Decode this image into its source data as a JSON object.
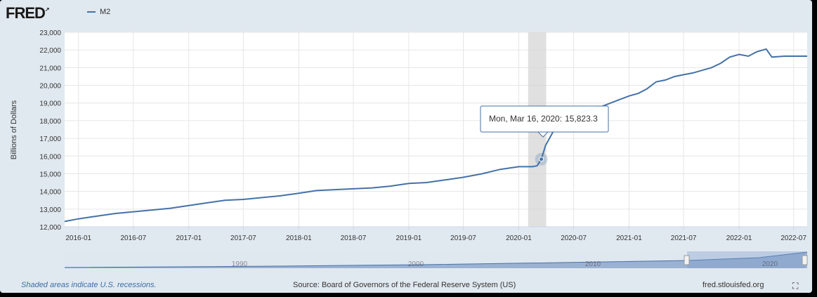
{
  "header": {
    "logo_text": "FRED",
    "legend_label": "M2"
  },
  "tooltip": {
    "date_label": "Mon, Mar 16, 2020:",
    "value_label": "15,823.3"
  },
  "footer": {
    "recession_note": "Shaded areas indicate U.S. recessions.",
    "source": "Source: Board of Governors of the Federal Reserve System (US)",
    "site": "fred.stlouisfed.org"
  },
  "navigator": {
    "labels": [
      "1990",
      "2000",
      "2010",
      "2020"
    ]
  },
  "colors": {
    "series": "#4572a7",
    "recession": "#d3d3d3",
    "background": "#e1e9f0"
  },
  "chart_data": {
    "type": "line",
    "ylabel": "Billions of Dollars",
    "ylim": [
      12000,
      23000
    ],
    "xlim": [
      "2015-11-16",
      "2022-08-15"
    ],
    "y_ticks": [
      "12,000",
      "13,000",
      "14,000",
      "15,000",
      "16,000",
      "17,000",
      "18,000",
      "19,000",
      "20,000",
      "21,000",
      "22,000",
      "23,000"
    ],
    "x_ticks": [
      "2016-01",
      "2016-07",
      "2017-01",
      "2017-07",
      "2018-01",
      "2018-07",
      "2019-01",
      "2019-07",
      "2020-01",
      "2020-07",
      "2021-01",
      "2021-07",
      "2022-01",
      "2022-07"
    ],
    "recession": {
      "start": "2020-02-01",
      "end": "2020-04-01"
    },
    "grid": true,
    "series": [
      {
        "name": "M2",
        "points": [
          [
            "2015-11-16",
            12300
          ],
          [
            "2016-01-01",
            12450
          ],
          [
            "2016-03-01",
            12600
          ],
          [
            "2016-05-01",
            12750
          ],
          [
            "2016-07-01",
            12850
          ],
          [
            "2016-09-01",
            12950
          ],
          [
            "2016-11-01",
            13050
          ],
          [
            "2017-01-01",
            13200
          ],
          [
            "2017-03-01",
            13350
          ],
          [
            "2017-05-01",
            13500
          ],
          [
            "2017-07-01",
            13550
          ],
          [
            "2017-09-01",
            13650
          ],
          [
            "2017-11-01",
            13750
          ],
          [
            "2018-01-01",
            13900
          ],
          [
            "2018-03-01",
            14050
          ],
          [
            "2018-05-01",
            14100
          ],
          [
            "2018-07-01",
            14150
          ],
          [
            "2018-09-01",
            14200
          ],
          [
            "2018-11-01",
            14300
          ],
          [
            "2019-01-01",
            14450
          ],
          [
            "2019-03-01",
            14500
          ],
          [
            "2019-05-01",
            14650
          ],
          [
            "2019-07-01",
            14800
          ],
          [
            "2019-09-01",
            15000
          ],
          [
            "2019-11-01",
            15250
          ],
          [
            "2020-01-01",
            15400
          ],
          [
            "2020-02-15",
            15400
          ],
          [
            "2020-03-02",
            15450
          ],
          [
            "2020-03-16",
            15823.3
          ],
          [
            "2020-03-30",
            16600
          ],
          [
            "2020-04-15",
            17100
          ],
          [
            "2020-05-01",
            17600
          ],
          [
            "2020-06-01",
            18000
          ],
          [
            "2020-07-01",
            18300
          ],
          [
            "2020-08-01",
            18500
          ],
          [
            "2020-09-01",
            18700
          ],
          [
            "2020-10-01",
            18800
          ],
          [
            "2020-11-01",
            19000
          ],
          [
            "2020-12-01",
            19200
          ],
          [
            "2021-01-01",
            19400
          ],
          [
            "2021-02-01",
            19550
          ],
          [
            "2021-03-01",
            19800
          ],
          [
            "2021-04-01",
            20200
          ],
          [
            "2021-05-01",
            20300
          ],
          [
            "2021-06-01",
            20500
          ],
          [
            "2021-07-01",
            20600
          ],
          [
            "2021-08-01",
            20700
          ],
          [
            "2021-09-01",
            20850
          ],
          [
            "2021-10-01",
            21000
          ],
          [
            "2021-11-01",
            21250
          ],
          [
            "2021-12-01",
            21600
          ],
          [
            "2022-01-01",
            21750
          ],
          [
            "2022-02-01",
            21650
          ],
          [
            "2022-03-01",
            21900
          ],
          [
            "2022-04-01",
            22050
          ],
          [
            "2022-04-20",
            21600
          ],
          [
            "2022-06-01",
            21650
          ],
          [
            "2022-08-15",
            21650
          ]
        ]
      }
    ]
  }
}
